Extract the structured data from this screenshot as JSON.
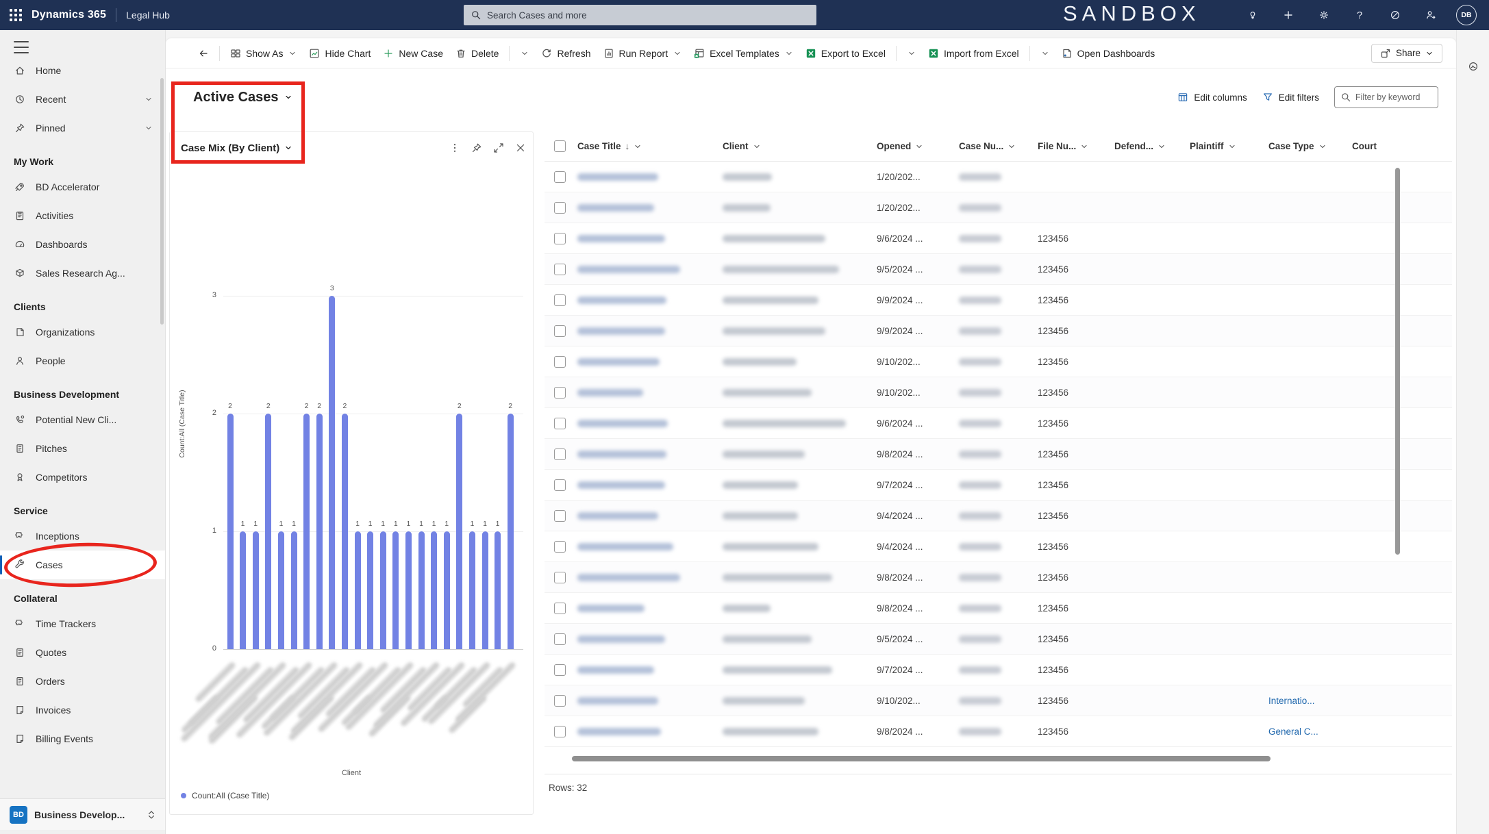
{
  "top_bar": {
    "app_name": "Dynamics 365",
    "app_area": "Legal Hub",
    "search_placeholder": "Search Cases and more",
    "environment": "SANDBOX",
    "avatar_initials": "DB"
  },
  "command_bar": {
    "items": [
      {
        "type": "button",
        "id": "back",
        "icon": "arrow-left",
        "label": ""
      },
      {
        "type": "sep"
      },
      {
        "type": "button",
        "id": "show-as",
        "icon": "show-as",
        "label": "Show As",
        "chevron": true
      },
      {
        "type": "button",
        "id": "hide-chart",
        "icon": "chart",
        "label": "Hide Chart"
      },
      {
        "type": "button",
        "id": "new-case",
        "icon": "plus",
        "label": "New Case"
      },
      {
        "type": "button",
        "id": "delete",
        "icon": "trash",
        "label": "Delete"
      },
      {
        "type": "sep"
      },
      {
        "type": "button",
        "id": "delete-overflow",
        "icon": "",
        "label": "",
        "chevron": true
      },
      {
        "type": "button",
        "id": "refresh",
        "icon": "refresh",
        "label": "Refresh"
      },
      {
        "type": "button",
        "id": "run-report",
        "icon": "report",
        "label": "Run Report",
        "chevron": true
      },
      {
        "type": "button",
        "id": "excel-templates",
        "icon": "excel-template",
        "label": "Excel Templates",
        "chevron": true
      },
      {
        "type": "button",
        "id": "export-to-excel",
        "icon": "excel",
        "label": "Export to Excel"
      },
      {
        "type": "sep"
      },
      {
        "type": "button",
        "id": "export-overflow",
        "icon": "",
        "label": "",
        "chevron": true
      },
      {
        "type": "button",
        "id": "import-from-excel",
        "icon": "excel",
        "label": "Import from Excel"
      },
      {
        "type": "sep"
      },
      {
        "type": "button",
        "id": "import-overflow",
        "icon": "",
        "label": "",
        "chevron": true
      },
      {
        "type": "button",
        "id": "open-dashboards",
        "icon": "dashboard",
        "label": "Open Dashboards"
      }
    ],
    "share_label": "Share"
  },
  "sidebar": {
    "top_items": [
      {
        "id": "home",
        "icon": "home",
        "label": "Home"
      },
      {
        "id": "recent",
        "icon": "clock",
        "label": "Recent",
        "chevron": true
      },
      {
        "id": "pinned",
        "icon": "pin",
        "label": "Pinned",
        "chevron": true
      }
    ],
    "groups": [
      {
        "label": "My Work",
        "items": [
          {
            "id": "bd-accelerator",
            "icon": "rocket",
            "label": "BD Accelerator"
          },
          {
            "id": "activities",
            "icon": "clipboard",
            "label": "Activities"
          },
          {
            "id": "dashboards",
            "icon": "gauge",
            "label": "Dashboards"
          },
          {
            "id": "sales-research",
            "icon": "cube",
            "label": "Sales Research Ag..."
          }
        ]
      },
      {
        "label": "Clients",
        "items": [
          {
            "id": "organizations",
            "icon": "org",
            "label": "Organizations"
          },
          {
            "id": "people",
            "icon": "person",
            "label": "People"
          }
        ]
      },
      {
        "label": "Business Development",
        "items": [
          {
            "id": "potential-new-clients",
            "icon": "phone",
            "label": "Potential New Cli..."
          },
          {
            "id": "pitches",
            "icon": "doc",
            "label": "Pitches"
          },
          {
            "id": "competitors",
            "icon": "medal",
            "label": "Competitors"
          }
        ]
      },
      {
        "label": "Service",
        "items": [
          {
            "id": "inceptions",
            "icon": "puzzle",
            "label": "Inceptions"
          },
          {
            "id": "cases",
            "icon": "wrench",
            "label": "Cases",
            "selected": true
          }
        ]
      },
      {
        "label": "Collateral",
        "items": [
          {
            "id": "time-trackers",
            "icon": "puzzle",
            "label": "Time Trackers"
          },
          {
            "id": "quotes",
            "icon": "doc-quote",
            "label": "Quotes"
          },
          {
            "id": "orders",
            "icon": "doc",
            "label": "Orders"
          },
          {
            "id": "invoices",
            "icon": "doc-invoice",
            "label": "Invoices"
          },
          {
            "id": "billing-events",
            "icon": "doc-invoice",
            "label": "Billing Events"
          }
        ]
      }
    ],
    "footer": {
      "badge": "BD",
      "label": "Business Develop..."
    }
  },
  "view": {
    "title": "Active Cases",
    "edit_columns": "Edit columns",
    "edit_filters": "Edit filters",
    "filter_placeholder": "Filter by keyword"
  },
  "chart_data": {
    "type": "bar",
    "title": "Case Mix (By Client)",
    "ylabel": "Count:All (Case Title)",
    "xlabel": "Client",
    "legend": [
      "Count:All (Case Title)"
    ],
    "values": [
      2,
      1,
      1,
      2,
      1,
      1,
      2,
      2,
      3,
      2,
      1,
      1,
      1,
      1,
      1,
      1,
      1,
      1,
      2,
      1,
      1,
      1,
      2
    ],
    "x_labels_redacted": true,
    "yticks": [
      0,
      1,
      2,
      3
    ],
    "ylim": [
      0,
      3.6
    ],
    "bar_color": "#7282e4"
  },
  "table": {
    "columns": [
      {
        "label": "",
        "type": "checkbox"
      },
      {
        "label": "Case Title",
        "sorted": true,
        "menu": true
      },
      {
        "label": "Client",
        "menu": true
      },
      {
        "label": "Opened",
        "menu": true
      },
      {
        "label": "Case Nu...",
        "menu": true
      },
      {
        "label": "File Nu...",
        "menu": true
      },
      {
        "label": "Defend...",
        "menu": true
      },
      {
        "label": "Plaintiff",
        "menu": true
      },
      {
        "label": "Case Type",
        "menu": true
      },
      {
        "label": "Court"
      }
    ],
    "rows": [
      {
        "opened": "1/20/202...",
        "file_number": "",
        "case_type": ""
      },
      {
        "opened": "1/20/202...",
        "file_number": "",
        "case_type": ""
      },
      {
        "opened": "9/6/2024 ...",
        "file_number": "123456",
        "case_type": ""
      },
      {
        "opened": "9/5/2024 ...",
        "file_number": "123456",
        "case_type": ""
      },
      {
        "opened": "9/9/2024 ...",
        "file_number": "123456",
        "case_type": ""
      },
      {
        "opened": "9/9/2024 ...",
        "file_number": "123456",
        "case_type": ""
      },
      {
        "opened": "9/10/202...",
        "file_number": "123456",
        "case_type": ""
      },
      {
        "opened": "9/10/202...",
        "file_number": "123456",
        "case_type": ""
      },
      {
        "opened": "9/6/2024 ...",
        "file_number": "123456",
        "case_type": ""
      },
      {
        "opened": "9/8/2024 ...",
        "file_number": "123456",
        "case_type": ""
      },
      {
        "opened": "9/7/2024 ...",
        "file_number": "123456",
        "case_type": ""
      },
      {
        "opened": "9/4/2024 ...",
        "file_number": "123456",
        "case_type": ""
      },
      {
        "opened": "9/4/2024 ...",
        "file_number": "123456",
        "case_type": ""
      },
      {
        "opened": "9/8/2024 ...",
        "file_number": "123456",
        "case_type": ""
      },
      {
        "opened": "9/8/2024 ...",
        "file_number": "123456",
        "case_type": ""
      },
      {
        "opened": "9/5/2024 ...",
        "file_number": "123456",
        "case_type": ""
      },
      {
        "opened": "9/7/2024 ...",
        "file_number": "123456",
        "case_type": ""
      },
      {
        "opened": "9/10/202...",
        "file_number": "123456",
        "case_type": "Internatio..."
      },
      {
        "opened": "9/8/2024 ...",
        "file_number": "123456",
        "case_type": "General C..."
      }
    ],
    "rows_label": "Rows: 32"
  },
  "colors": {
    "accent": "#1160b7",
    "topbar": "#1f3154",
    "bar": "#7282e4",
    "excel_green": "#169154",
    "link": "#1f67ad",
    "annotation": "#e8251d"
  }
}
